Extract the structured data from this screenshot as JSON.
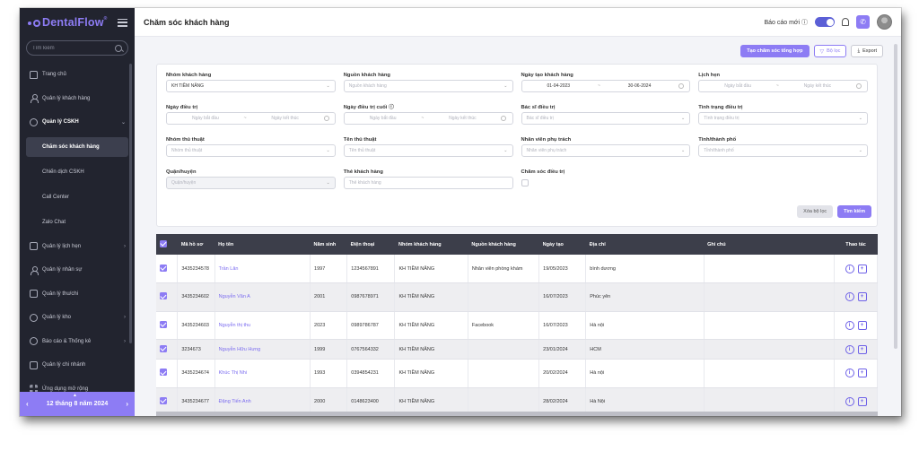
{
  "app": {
    "logo": "DentalFlow",
    "title": "Chăm sóc khách hàng"
  },
  "sidebar": {
    "search_placeholder": "Tìm kiếm",
    "items": [
      {
        "label": "Trang chủ",
        "icon": "home-icon"
      },
      {
        "label": "Quản lý khách hàng",
        "icon": "user-icon"
      },
      {
        "label": "Quản lý CSKH",
        "icon": "heart-hand-icon",
        "expanded": true
      },
      {
        "label": "Chăm sóc khách hàng",
        "sub": true,
        "active": true
      },
      {
        "label": "Chiến dịch CSKH",
        "sub": true
      },
      {
        "label": "Call Center",
        "sub": true
      },
      {
        "label": "Zalo Chat",
        "sub": true
      },
      {
        "label": "Quản lý lịch hẹn",
        "icon": "calendar-icon"
      },
      {
        "label": "Quản lý nhân sự",
        "icon": "staff-icon"
      },
      {
        "label": "Quản lý thu/chi",
        "icon": "wallet-icon"
      },
      {
        "label": "Quản lý kho",
        "icon": "box-icon"
      },
      {
        "label": "Báo cáo & Thống kê",
        "icon": "chart-icon"
      },
      {
        "label": "Quản lý chi nhánh",
        "icon": "branch-icon"
      },
      {
        "label": "Ứng dụng mở rộng",
        "icon": "apps-icon"
      }
    ],
    "date_label": "12 tháng 8 năm 2024"
  },
  "topbar": {
    "report_label": "Báo cáo mới",
    "toggle_on": true
  },
  "actions": {
    "create_label": "Tạo chăm sóc tổng hợp",
    "filter_label": "Bộ lọc",
    "export_label": "Export"
  },
  "filters": {
    "customer_group": {
      "label": "Nhóm khách hàng",
      "value": "KH TIỀM NĂNG"
    },
    "customer_source": {
      "label": "Nguồn khách hàng",
      "placeholder": "Nguồn khách hàng"
    },
    "created_date": {
      "label": "Ngày tạo khách hàng",
      "from": "01-04-2023",
      "to": "30-06-2024"
    },
    "appointment": {
      "label": "Lịch hẹn",
      "from": "Ngày bắt đầu",
      "to": "Ngày kết thúc"
    },
    "treatment_date": {
      "label": "Ngày điều trị",
      "from": "Ngày bắt đầu",
      "to": "Ngày kết thúc"
    },
    "last_treatment_date": {
      "label": "Ngày điều trị cuối",
      "from": "Ngày bắt đầu",
      "to": "Ngày kết thúc"
    },
    "doctor": {
      "label": "Bác sĩ điều trị",
      "placeholder": "Bác sĩ điều trị"
    },
    "treatment_status": {
      "label": "Tình trạng điều trị",
      "placeholder": "Tình trạng điều trị"
    },
    "procedure_group": {
      "label": "Nhóm thủ thuật",
      "placeholder": "Nhóm thủ thuật"
    },
    "procedure_name": {
      "label": "Tên thủ thuật",
      "placeholder": "Tên thủ thuật"
    },
    "staff": {
      "label": "Nhân viên phụ trách",
      "placeholder": "Nhân viên phụ trách"
    },
    "province": {
      "label": "Tỉnh/thành phố",
      "placeholder": "Tỉnh/thành phố"
    },
    "district": {
      "label": "Quận/huyện",
      "placeholder": "Quận/huyện"
    },
    "card": {
      "label": "Thẻ khách hàng",
      "placeholder": "Thẻ khách hàng"
    },
    "care": {
      "label": "Chăm sóc điều trị"
    },
    "clear_label": "Xóa bộ lọc",
    "search_label": "Tìm kiếm"
  },
  "table": {
    "columns": [
      "Mã hồ sơ",
      "Họ tên",
      "Năm sinh",
      "Điện thoại",
      "Nhóm khách hàng",
      "Nguồn khách hàng",
      "Ngày tạo",
      "Địa chỉ",
      "Ghi chú",
      "Thao tác"
    ],
    "rows": [
      {
        "code": "3435234578",
        "name": "Trần Lân",
        "birth": "1997",
        "phone": "1234567891",
        "group": "KH TIỀM NĂNG",
        "source": "Nhân viên phòng khám",
        "created": "19/05/2023",
        "address": "bình dương",
        "note": ""
      },
      {
        "code": "3435234602",
        "name": "Nguyễn Văn A",
        "birth": "2001",
        "phone": "0987678971",
        "group": "KH TIỀM NĂNG",
        "source": "",
        "created": "16/07/2023",
        "address": "Phúc yên",
        "note": ""
      },
      {
        "code": "3435234603",
        "name": "Nguyễn thị thu",
        "birth": "2023",
        "phone": "0989786787",
        "group": "KH TIỀM NĂNG",
        "source": "Facebook",
        "created": "16/07/2023",
        "address": "Hà nội",
        "note": ""
      },
      {
        "code": "3234673",
        "name": "Nguyễn Hữu Hưng",
        "birth": "1999",
        "phone": "0767564332",
        "group": "KH TIỀM NĂNG",
        "source": "",
        "created": "23/01/2024",
        "address": "HCM",
        "note": ""
      },
      {
        "code": "3435234674",
        "name": "Khúc Thị Nhi",
        "birth": "1993",
        "phone": "0394854231",
        "group": "KH TIỀM NĂNG",
        "source": "",
        "created": "20/02/2024",
        "address": "Hà nội",
        "note": ""
      },
      {
        "code": "3435234677",
        "name": "Đặng Tiến Anh",
        "birth": "2000",
        "phone": "0148623400",
        "group": "KH TIỀM NĂNG",
        "source": "",
        "created": "28/02/2024",
        "address": "Hà Nội",
        "note": ""
      }
    ]
  },
  "colors": {
    "accent": "#8d7cf4",
    "sidebar_bg": "#22242f",
    "header_bg": "#3c3e4a"
  }
}
